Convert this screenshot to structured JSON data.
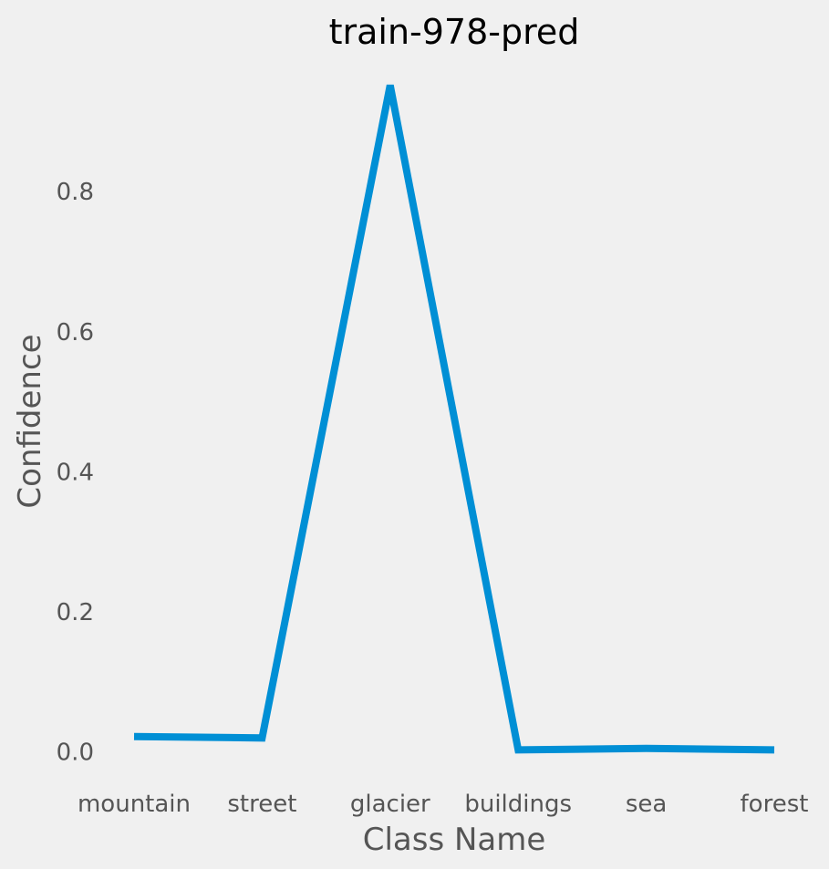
{
  "chart_data": {
    "type": "line",
    "title": "train-978-pred",
    "xlabel": "Class Name",
    "ylabel": "Confidence",
    "categories": [
      "mountain",
      "street",
      "glacier",
      "buildings",
      "sea",
      "forest"
    ],
    "series": [
      {
        "values": [
          0.022,
          0.02,
          0.952,
          0.003,
          0.005,
          0.003
        ]
      }
    ],
    "yticks": [
      0.0,
      0.2,
      0.4,
      0.6,
      0.8
    ],
    "ytick_labels": [
      "0.0",
      "0.2",
      "0.4",
      "0.6",
      "0.8"
    ],
    "ylim": [
      -0.02,
      0.98
    ],
    "grid": false,
    "legend": "none",
    "colors": {
      "background": "#f0f0f0",
      "series_line": "#008fd5",
      "text": "#555555",
      "title": "#000000"
    }
  }
}
